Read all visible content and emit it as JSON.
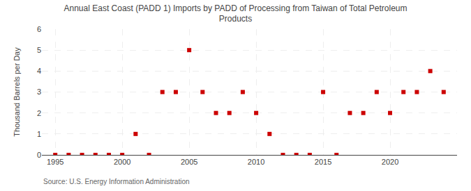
{
  "chart_data": {
    "type": "scatter",
    "title": "Annual East Coast (PADD 1) Imports by PADD of Processing from Taiwan of Total Petroleum\nProducts",
    "ylabel": "Thousand Barrels per Day",
    "source": "Source: U.S. Energy Information Administration",
    "x": [
      1995,
      1996,
      1997,
      1998,
      1999,
      2000,
      2001,
      2002,
      2003,
      2004,
      2005,
      2006,
      2007,
      2008,
      2009,
      2010,
      2011,
      2012,
      2013,
      2014,
      2015,
      2016,
      2017,
      2018,
      2019,
      2020,
      2021,
      2022,
      2023,
      2024
    ],
    "values": [
      0,
      0,
      0,
      0,
      0,
      0,
      1,
      0,
      3,
      3,
      5,
      3,
      2,
      2,
      3,
      2,
      1,
      0,
      0,
      0,
      3,
      0,
      2,
      2,
      3,
      2,
      3,
      3,
      4,
      3
    ],
    "color": "#cc0000",
    "marker": "square",
    "xlim": [
      1994.0,
      2025.0
    ],
    "ylim": [
      0,
      6
    ],
    "xticks": [
      1995,
      2000,
      2005,
      2010,
      2015,
      2020
    ],
    "yticks": [
      0,
      1,
      2,
      3,
      4,
      5,
      6
    ],
    "grid": true
  }
}
